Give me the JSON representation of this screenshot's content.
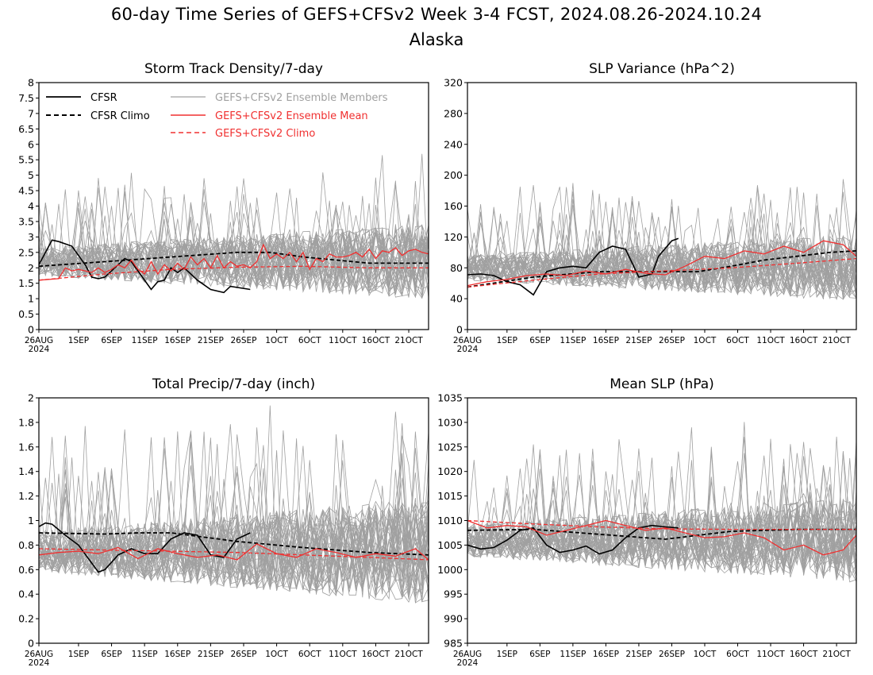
{
  "title": "60-day Time Series of GEFS+CFSv2 Week 3-4 FCST, 2024.08.26-2024.10.24",
  "subtitle": "Alaska",
  "colors": {
    "cfsr": "#000000",
    "ensemble_members": "#a0a0a0",
    "ensemble_mean": "#f03030",
    "gefs_climo": "#f03030"
  },
  "legend": {
    "cfsr": "CFSR",
    "cfsr_climo": "CFSR Climo",
    "members": "GEFS+CFSv2 Ensemble Members",
    "ens_mean": "GEFS+CFSv2 Ensemble Mean",
    "gefs_climo": "GEFS+CFSv2 Climo"
  },
  "x_tick_labels": [
    "26AUG",
    "1SEP",
    "6SEP",
    "11SEP",
    "16SEP",
    "21SEP",
    "26SEP",
    "1OCT",
    "6OCT",
    "11OCT",
    "16OCT",
    "21OCT"
  ],
  "x_year_label": "2024",
  "chart_data": [
    {
      "type": "line",
      "title": "Storm Track Density/7-day",
      "x_days": 60,
      "ylim": [
        0,
        8
      ],
      "yticks": [
        "0",
        "0.5",
        "1",
        "1.5",
        "2",
        "2.5",
        "3",
        "3.5",
        "4",
        "4.5",
        "5",
        "5.5",
        "6",
        "6.5",
        "7",
        "7.5",
        "8"
      ],
      "member_band": {
        "mean": 2.2,
        "spread": 0.85
      },
      "series": [
        {
          "name": "CFSR",
          "x": [
            0,
            2,
            3,
            5,
            7,
            8,
            9,
            10,
            13,
            14,
            15,
            17,
            18,
            19,
            20,
            21,
            22,
            24,
            26,
            28,
            29,
            32
          ],
          "values": [
            2.1,
            2.9,
            2.85,
            2.7,
            2.1,
            1.7,
            1.65,
            1.7,
            2.3,
            2.2,
            1.9,
            1.3,
            1.55,
            1.6,
            2.0,
            1.85,
            2.0,
            1.6,
            1.3,
            1.2,
            1.4,
            1.3
          ]
        },
        {
          "name": "CFSR Climo",
          "x": [
            0,
            10,
            20,
            30,
            35,
            40,
            50,
            59
          ],
          "values": [
            2.05,
            2.2,
            2.35,
            2.5,
            2.5,
            2.35,
            2.15,
            2.15
          ]
        },
        {
          "name": "GEFS+CFSv2 Ensemble Mean",
          "x": [
            0,
            3,
            4,
            5,
            6,
            8,
            9,
            10,
            11,
            12,
            13,
            14,
            15,
            16,
            17,
            18,
            19,
            20,
            21,
            22,
            23,
            24,
            25,
            26,
            27,
            28,
            29,
            30,
            31,
            32,
            33,
            34,
            35,
            36,
            37,
            38,
            39,
            40,
            41,
            42,
            43,
            44,
            45,
            46,
            47,
            48,
            49,
            50,
            51,
            52,
            53,
            54,
            55,
            56,
            57,
            58,
            59
          ],
          "values": [
            1.6,
            1.65,
            2.0,
            1.9,
            1.95,
            1.85,
            2.0,
            1.85,
            1.95,
            2.1,
            2.0,
            2.25,
            1.95,
            1.8,
            2.2,
            1.8,
            2.1,
            1.9,
            2.15,
            1.95,
            2.35,
            2.1,
            2.3,
            2.0,
            2.4,
            2.0,
            2.2,
            2.05,
            2.1,
            2.0,
            2.2,
            2.75,
            2.3,
            2.45,
            2.3,
            2.5,
            2.2,
            2.5,
            1.95,
            2.3,
            2.2,
            2.45,
            2.35,
            2.35,
            2.4,
            2.5,
            2.35,
            2.6,
            2.3,
            2.55,
            2.5,
            2.65,
            2.4,
            2.55,
            2.6,
            2.5,
            2.45
          ]
        },
        {
          "name": "GEFS+CFSv2 Climo",
          "x": [
            0,
            10,
            20,
            30,
            40,
            50,
            59
          ],
          "values": [
            1.6,
            1.8,
            1.95,
            2.02,
            2.05,
            2.0,
            2.0
          ]
        }
      ]
    },
    {
      "type": "line",
      "title": "SLP Variance (hPa^2)",
      "x_days": 60,
      "ylim": [
        0,
        320
      ],
      "yticks": [
        "0",
        "40",
        "80",
        "120",
        "160",
        "200",
        "240",
        "280",
        "320"
      ],
      "member_band": {
        "mean": 80,
        "spread": 30
      },
      "series": [
        {
          "name": "CFSR",
          "x": [
            0,
            2,
            4,
            6,
            8,
            10,
            12,
            14,
            16,
            18,
            20,
            22,
            24,
            26,
            28,
            29,
            31,
            32
          ],
          "values": [
            71,
            72,
            70,
            62,
            58,
            45,
            75,
            80,
            82,
            80,
            100,
            108,
            104,
            68,
            72,
            95,
            115,
            118
          ]
        },
        {
          "name": "CFSR Climo",
          "x": [
            0,
            10,
            20,
            30,
            35,
            40,
            45,
            50,
            55,
            59
          ],
          "values": [
            55,
            68,
            75,
            75,
            75,
            82,
            90,
            95,
            100,
            102
          ]
        },
        {
          "name": "GEFS+CFSv2 Ensemble Mean",
          "x": [
            0,
            3,
            6,
            9,
            12,
            15,
            18,
            21,
            24,
            27,
            30,
            33,
            36,
            39,
            42,
            45,
            48,
            51,
            54,
            57,
            59
          ],
          "values": [
            57,
            62,
            65,
            70,
            72,
            70,
            76,
            72,
            78,
            73,
            71,
            82,
            95,
            92,
            102,
            98,
            108,
            100,
            115,
            110,
            95
          ]
        },
        {
          "name": "GEFS+CFSv2 Climo",
          "x": [
            0,
            10,
            20,
            30,
            40,
            50,
            59
          ],
          "values": [
            55,
            64,
            72,
            76,
            80,
            86,
            92
          ]
        }
      ]
    },
    {
      "type": "line",
      "title": "Total Precip/7-day (inch)",
      "x_days": 60,
      "ylim": [
        0,
        2
      ],
      "yticks": [
        "0",
        "0.2",
        "0.4",
        "0.6",
        "0.8",
        "1",
        "1.2",
        "1.4",
        "1.6",
        "1.8",
        "2"
      ],
      "member_band": {
        "mean": 0.75,
        "spread": 0.3
      },
      "series": [
        {
          "name": "CFSR",
          "x": [
            0,
            1,
            2,
            4,
            6,
            9,
            10,
            12,
            14,
            16,
            18,
            20,
            22,
            24,
            25,
            26,
            28,
            30,
            32
          ],
          "values": [
            0.95,
            0.98,
            0.97,
            0.88,
            0.8,
            0.58,
            0.6,
            0.72,
            0.77,
            0.73,
            0.73,
            0.85,
            0.9,
            0.88,
            0.8,
            0.72,
            0.7,
            0.85,
            0.9
          ]
        },
        {
          "name": "CFSR Climo",
          "x": [
            0,
            10,
            15,
            20,
            30,
            40,
            50,
            59
          ],
          "values": [
            0.9,
            0.89,
            0.9,
            0.9,
            0.83,
            0.78,
            0.74,
            0.72
          ]
        },
        {
          "name": "GEFS+CFSv2 Ensemble Mean",
          "x": [
            0,
            3,
            6,
            9,
            12,
            15,
            18,
            21,
            24,
            27,
            30,
            33,
            36,
            39,
            42,
            45,
            48,
            51,
            54,
            57,
            59
          ],
          "values": [
            0.72,
            0.74,
            0.75,
            0.73,
            0.78,
            0.69,
            0.77,
            0.73,
            0.7,
            0.72,
            0.68,
            0.81,
            0.73,
            0.7,
            0.77,
            0.74,
            0.7,
            0.73,
            0.71,
            0.77,
            0.68
          ]
        },
        {
          "name": "GEFS+CFSv2 Climo",
          "x": [
            0,
            10,
            20,
            30,
            40,
            50,
            59
          ],
          "values": [
            0.77,
            0.76,
            0.75,
            0.74,
            0.72,
            0.7,
            0.68
          ]
        }
      ]
    },
    {
      "type": "line",
      "title": "Mean SLP (hPa)",
      "x_days": 60,
      "ylim": [
        985,
        1035
      ],
      "yticks": [
        "985",
        "990",
        "995",
        "1000",
        "1005",
        "1010",
        "1015",
        "1020",
        "1025",
        "1030",
        "1035"
      ],
      "member_band": {
        "mean": 1006,
        "spread": 6
      },
      "series": [
        {
          "name": "CFSR",
          "x": [
            0,
            2,
            4,
            6,
            8,
            10,
            12,
            14,
            16,
            18,
            20,
            22,
            24,
            26,
            28,
            30,
            32
          ],
          "values": [
            1005,
            1004.2,
            1004.5,
            1006,
            1008,
            1008.5,
            1005,
            1003.5,
            1004,
            1004.8,
            1003.2,
            1004,
            1006.5,
            1008.5,
            1009,
            1008.7,
            1008.5
          ]
        },
        {
          "name": "CFSR Climo",
          "x": [
            0,
            10,
            20,
            30,
            40,
            50,
            59
          ],
          "values": [
            1008,
            1008.2,
            1007.2,
            1006.2,
            1007.8,
            1008.2,
            1008.2
          ]
        },
        {
          "name": "GEFS+CFSv2 Ensemble Mean",
          "x": [
            0,
            3,
            6,
            9,
            12,
            15,
            18,
            21,
            24,
            27,
            30,
            33,
            36,
            39,
            42,
            45,
            48,
            51,
            54,
            57,
            59
          ],
          "values": [
            1010,
            1008.5,
            1009,
            1008.7,
            1007,
            1008,
            1009,
            1010,
            1009,
            1008,
            1008.5,
            1007.5,
            1006.5,
            1006.7,
            1007.5,
            1006.5,
            1004,
            1005,
            1003,
            1004,
            1007
          ]
        },
        {
          "name": "GEFS+CFSv2 Climo",
          "x": [
            0,
            10,
            20,
            30,
            40,
            50,
            59
          ],
          "values": [
            1010,
            1009.3,
            1008.7,
            1008.3,
            1008.2,
            1008.2,
            1008.2
          ]
        }
      ]
    }
  ]
}
